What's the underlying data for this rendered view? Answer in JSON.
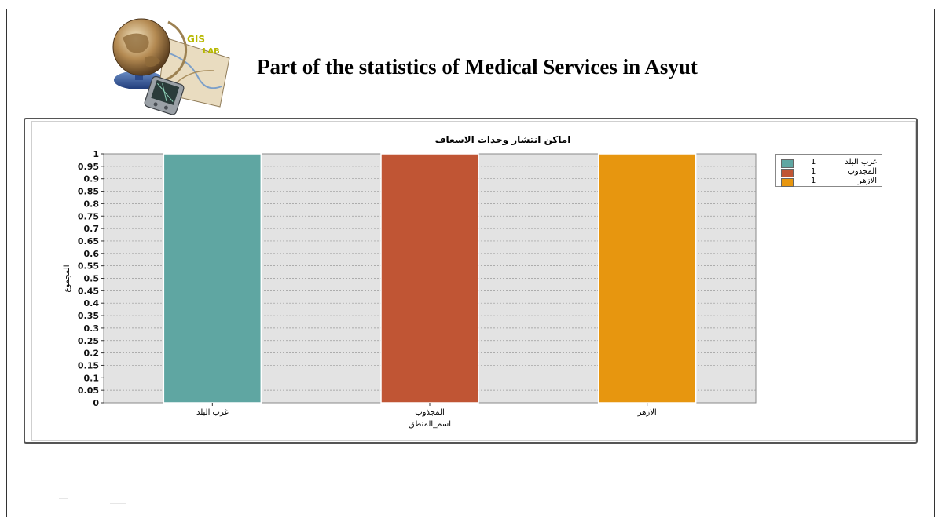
{
  "header": {
    "logo_text_top": "GIS",
    "logo_text_bottom": "LAB",
    "title": "Part of the statistics of Medical Services in Asyut"
  },
  "chart_data": {
    "type": "bar",
    "title": "اماكن انتشار وحدات الاسعاف",
    "xlabel": "اسم_المنطق",
    "ylabel": "المجموع",
    "categories": [
      "غرب البلد",
      "المجذوب",
      "الازهر"
    ],
    "series": [
      {
        "name": "",
        "values": [
          1,
          1,
          1
        ]
      }
    ],
    "bar_colors": [
      "#5fa6a2",
      "#c05534",
      "#e7960f"
    ],
    "ylim": [
      0,
      1
    ],
    "yticks": [
      "0",
      "0.05",
      "0.1",
      "0.15",
      "0.2",
      "0.25",
      "0.3",
      "0.35",
      "0.4",
      "0.45",
      "0.5",
      "0.55",
      "0.6",
      "0.65",
      "0.7",
      "0.75",
      "0.8",
      "0.85",
      "0.9",
      "0.95",
      "1"
    ],
    "grid": true,
    "plot_background": "#e3e3e3",
    "legend_position": "right",
    "legend": [
      {
        "label": "غرب البلد",
        "value": "1",
        "color": "#5fa6a2"
      },
      {
        "label": "المجذوب",
        "value": "1",
        "color": "#c05534"
      },
      {
        "label": "الازهر",
        "value": "1",
        "color": "#e7960f"
      }
    ]
  }
}
